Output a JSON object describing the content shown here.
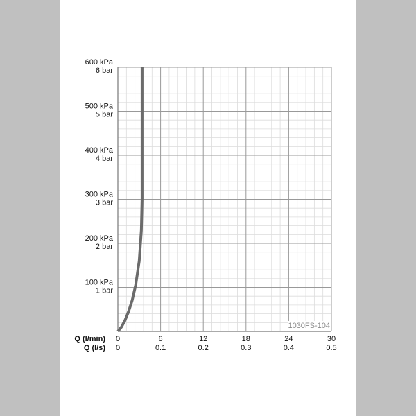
{
  "chart_data": {
    "type": "line",
    "x_label": "Q (l/min)",
    "x2_label": "Q (l/s)",
    "x": [
      0,
      0.5,
      1,
      1.5,
      2,
      2.5,
      3,
      3.3,
      3.4,
      3.4
    ],
    "values": [
      0,
      10,
      25,
      45,
      70,
      105,
      160,
      230,
      300,
      600
    ],
    "color": "#6b6b6b",
    "xlim": [
      0,
      30
    ],
    "xticks": [
      0,
      6,
      12,
      18,
      24,
      30
    ],
    "x2lim": [
      0,
      0.5
    ],
    "x2ticks": [
      0,
      0.1,
      0.2,
      0.3,
      0.4,
      0.5
    ],
    "ylim": [
      0,
      600
    ],
    "yticks": [
      {
        "value": 100,
        "label": "100 kPa"
      },
      {
        "value": 200,
        "label": "200 kPa"
      },
      {
        "value": 300,
        "label": "300 kPa"
      },
      {
        "value": 400,
        "label": "400 kPa"
      },
      {
        "value": 500,
        "label": "500 kPa"
      },
      {
        "value": 600,
        "label": "600 kPa"
      }
    ],
    "y2lim": [
      0,
      6
    ],
    "y2ticks": [
      {
        "value": 1,
        "label": "1 bar"
      },
      {
        "value": 2,
        "label": "2 bar"
      },
      {
        "value": 3,
        "label": "3 bar"
      },
      {
        "value": 4,
        "label": "4 bar"
      },
      {
        "value": 5,
        "label": "5 bar"
      },
      {
        "value": 6,
        "label": "6 bar"
      }
    ],
    "grid": true,
    "minor_divisions": 5,
    "mark": "1030FS-104"
  }
}
